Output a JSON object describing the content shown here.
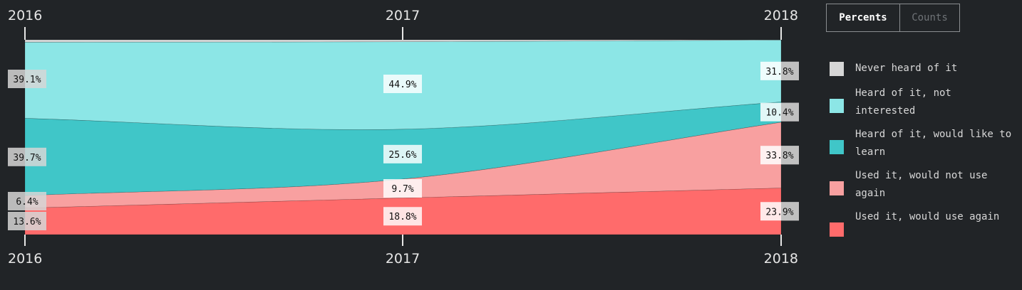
{
  "toggle": {
    "percents_label": "Percents",
    "counts_label": "Counts",
    "selected": "Percents"
  },
  "chart_data": {
    "type": "area",
    "stacked": true,
    "normalized": true,
    "x": [
      "2016",
      "2017",
      "2018"
    ],
    "series": [
      {
        "name": "Used it, would use again",
        "color": "#ff6b6b",
        "values": [
          13.6,
          18.8,
          23.9
        ]
      },
      {
        "name": "Used it, would not use again",
        "color": "#f8a0a0",
        "values": [
          6.4,
          9.7,
          33.8
        ]
      },
      {
        "name": "Heard of it, would like to learn",
        "color": "#40c6c8",
        "values": [
          39.7,
          25.6,
          10.4
        ]
      },
      {
        "name": "Heard of it, not interested",
        "color": "#8ce6e6",
        "values": [
          39.1,
          44.9,
          31.8
        ]
      },
      {
        "name": "Never heard of it",
        "color": "#d6d6d6",
        "values": [
          1.2,
          1.0,
          0.1
        ]
      }
    ],
    "labels": [
      [
        "13.6%",
        "18.8%",
        "23.9%"
      ],
      [
        "6.4%",
        "9.7%",
        "33.8%"
      ],
      [
        "39.7%",
        "25.6%",
        "10.4%"
      ],
      [
        "39.1%",
        "44.9%",
        "31.8%"
      ]
    ],
    "ylim": [
      0,
      100
    ]
  }
}
